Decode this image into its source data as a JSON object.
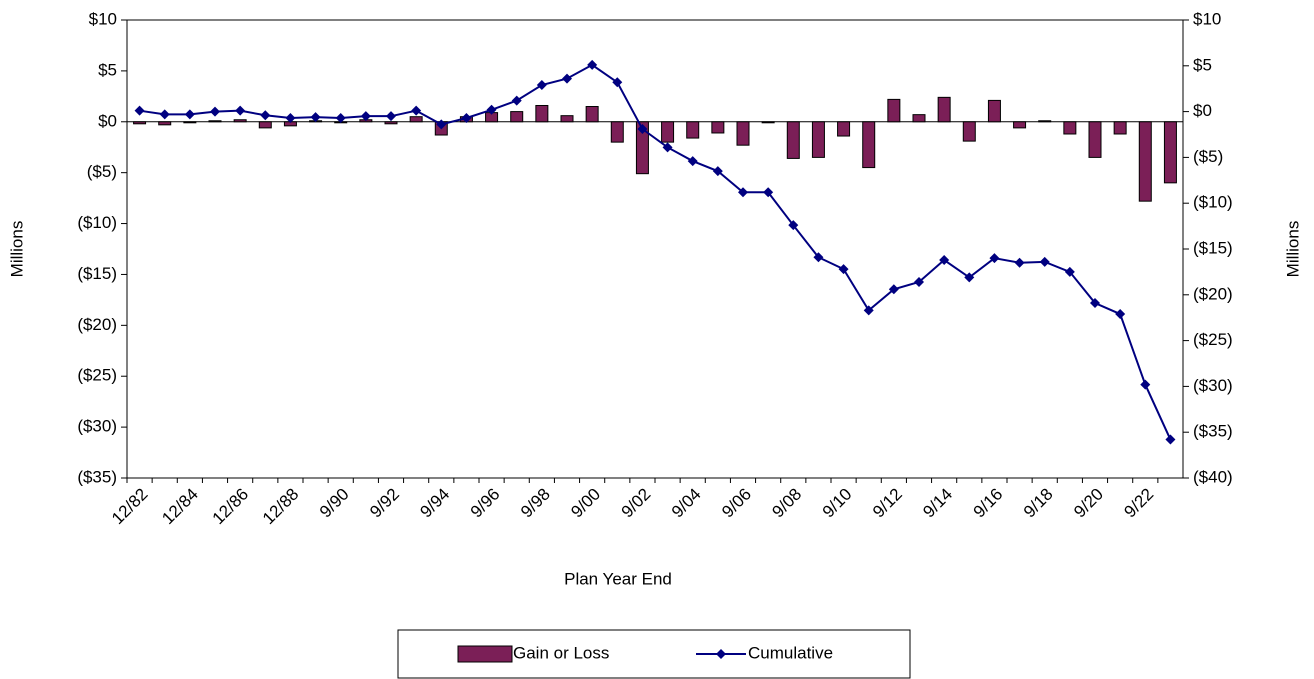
{
  "chart_data": {
    "type": "combo",
    "x_label": "Plan Year End",
    "y_label": "Millions",
    "y2_label": "Millions",
    "categories": [
      "12/82",
      null,
      "12/84",
      null,
      "12/86",
      null,
      "12/88",
      null,
      "9/90",
      null,
      "9/92",
      null,
      "9/94",
      null,
      "9/96",
      null,
      "9/98",
      null,
      "9/00",
      null,
      "9/02",
      null,
      "9/04",
      null,
      "9/06",
      null,
      "9/08",
      null,
      "9/10",
      null,
      "9/12",
      null,
      "9/14",
      null,
      "9/16",
      null,
      "9/18",
      null,
      "9/20",
      null,
      "9/22",
      null
    ],
    "series": [
      {
        "name": "Gain or Loss",
        "type": "bar",
        "color": "#7b1f57",
        "values": [
          -0.2,
          -0.3,
          -0.1,
          0.1,
          0.2,
          -0.6,
          -0.4,
          0.1,
          -0.1,
          0.2,
          -0.2,
          0.5,
          -1.3,
          0.5,
          0.9,
          1.0,
          1.6,
          0.6,
          1.5,
          -2.0,
          -5.1,
          -2.0,
          -1.6,
          -1.1,
          -2.3,
          -0.1,
          -3.6,
          -3.5,
          -1.4,
          -4.5,
          2.2,
          0.7,
          2.4,
          -1.9,
          2.1,
          -0.6,
          0.1,
          -1.2,
          -3.5,
          -1.2,
          -7.8,
          -6.0
        ]
      },
      {
        "name": "Cumulative",
        "type": "line",
        "axis": "y2",
        "color": "#000080",
        "values": [
          0.1,
          -0.3,
          -0.3,
          0.0,
          0.1,
          -0.4,
          -0.7,
          -0.6,
          -0.7,
          -0.5,
          -0.5,
          0.1,
          -1.4,
          -0.7,
          0.2,
          1.2,
          2.9,
          3.6,
          5.1,
          3.2,
          -1.9,
          -3.9,
          -5.4,
          -6.5,
          -8.8,
          -8.8,
          -12.4,
          -15.9,
          -17.2,
          -21.7,
          -19.4,
          -18.6,
          -16.2,
          -18.1,
          -16.0,
          -16.5,
          -16.4,
          -17.5,
          -20.9,
          -22.1,
          -29.8,
          -35.8
        ]
      }
    ],
    "ylim": [
      -35,
      10
    ],
    "yticks": [
      {
        "value": 10,
        "label": "$10"
      },
      {
        "value": 5,
        "label": "$5"
      },
      {
        "value": 0,
        "label": "$0"
      },
      {
        "value": -5,
        "label": "($5)"
      },
      {
        "value": -10,
        "label": "($10)"
      },
      {
        "value": -15,
        "label": "($15)"
      },
      {
        "value": -20,
        "label": "($20)"
      },
      {
        "value": -25,
        "label": "($25)"
      },
      {
        "value": -30,
        "label": "($30)"
      },
      {
        "value": -35,
        "label": "($35)"
      }
    ],
    "y2lim": [
      -40,
      10
    ],
    "y2ticks": [
      {
        "value": 10,
        "label": "$10"
      },
      {
        "value": 5,
        "label": "$5"
      },
      {
        "value": 0,
        "label": "$0"
      },
      {
        "value": -5,
        "label": "($5)"
      },
      {
        "value": -10,
        "label": "($10)"
      },
      {
        "value": -15,
        "label": "($15)"
      },
      {
        "value": -20,
        "label": "($20)"
      },
      {
        "value": -25,
        "label": "($25)"
      },
      {
        "value": -30,
        "label": "($30)"
      },
      {
        "value": -35,
        "label": "($35)"
      },
      {
        "value": -40,
        "label": "($40)"
      }
    ],
    "grid": false,
    "legend": "bottom"
  }
}
